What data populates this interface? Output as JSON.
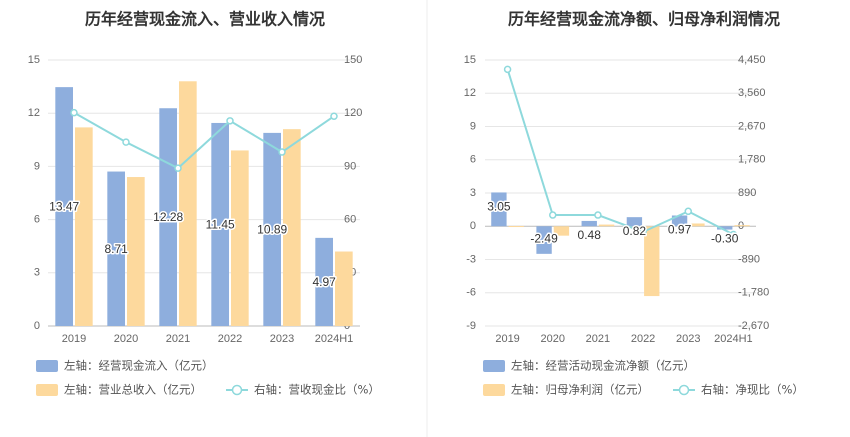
{
  "chart_data": [
    {
      "type": "bar",
      "title": "历年经营现金流入、营业收入情况",
      "categories": [
        "2019",
        "2020",
        "2021",
        "2022",
        "2023",
        "2024H1"
      ],
      "left_axis": {
        "ticks": [
          "0",
          "3",
          "6",
          "9",
          "12",
          "15"
        ],
        "ylim": [
          0,
          15
        ]
      },
      "right_axis": {
        "ticks": [
          "0",
          "30",
          "60",
          "90",
          "120",
          "150"
        ],
        "ylim": [
          0,
          150
        ]
      },
      "series": [
        {
          "name": "左轴：经营现金流入（亿元）",
          "kind": "bar",
          "axis": "left",
          "color": "#8eaedd",
          "values": [
            13.47,
            8.71,
            12.28,
            11.45,
            10.89,
            4.97
          ],
          "labels": [
            "13.47",
            "8.71",
            "12.28",
            "11.45",
            "10.89",
            "4.97"
          ]
        },
        {
          "name": "左轴：营业总收入（亿元）",
          "kind": "bar",
          "axis": "left",
          "color": "#fdd99d",
          "values": [
            11.2,
            8.4,
            13.8,
            9.9,
            11.1,
            4.2
          ]
        },
        {
          "name": "右轴：营收现金比（%）",
          "kind": "line",
          "axis": "right",
          "color": "#8ed9dc",
          "values": [
            120.3,
            103.7,
            89.0,
            115.7,
            98.1,
            118.3
          ]
        }
      ]
    },
    {
      "type": "bar",
      "title": "历年经营现金流净额、归母净利润情况",
      "categories": [
        "2019",
        "2020",
        "2021",
        "2022",
        "2023",
        "2024H1"
      ],
      "left_axis": {
        "ticks": [
          "-9",
          "-6",
          "-3",
          "0",
          "3",
          "6",
          "9",
          "12",
          "15"
        ],
        "ylim": [
          -9,
          15
        ]
      },
      "right_axis": {
        "ticks": [
          "-2,670",
          "-1,780",
          "-890",
          "0",
          "890",
          "1,780",
          "2,670",
          "3,560",
          "4,450"
        ],
        "ylim": [
          -2670,
          4450
        ]
      },
      "series": [
        {
          "name": "左轴：经营活动现金流净额（亿元）",
          "kind": "bar",
          "axis": "left",
          "color": "#8eaedd",
          "values": [
            3.05,
            -2.49,
            0.48,
            0.82,
            0.97,
            -0.3
          ],
          "labels": [
            "3.05",
            "-2.49",
            "0.48",
            "0.82",
            "0.97",
            "-0.30"
          ]
        },
        {
          "name": "左轴：归母净利润（亿元）",
          "kind": "bar",
          "axis": "left",
          "color": "#fdd99d",
          "values": [
            0.02,
            -0.85,
            0.15,
            -6.3,
            0.25,
            0.1
          ]
        },
        {
          "name": "右轴：净现比（%）",
          "kind": "line",
          "axis": "right",
          "color": "#8ed9dc",
          "values": [
            4200,
            300,
            300,
            -150,
            400,
            -220
          ]
        }
      ]
    }
  ]
}
